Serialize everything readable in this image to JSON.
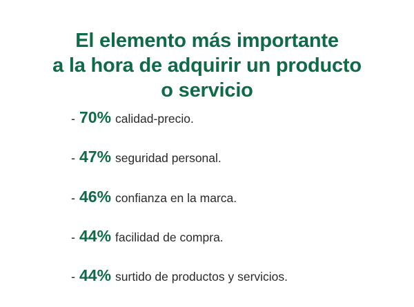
{
  "title": {
    "lines": [
      "El elemento más importante",
      "a la hora de adquirir un producto",
      "o servicio"
    ]
  },
  "items": [
    {
      "bullet": "-",
      "percent": "70%",
      "text": "calidad-precio."
    },
    {
      "bullet": "-",
      "percent": "47%",
      "text": "seguridad personal."
    },
    {
      "bullet": "-",
      "percent": "46%",
      "text": "confianza en la marca."
    },
    {
      "bullet": "-",
      "percent": "44%",
      "text": "facilidad de compra."
    },
    {
      "bullet": "-",
      "percent": "44%",
      "text": "surtido de productos y servicios."
    }
  ],
  "colors": {
    "accent": "#0e6a47",
    "text": "#2a2a2a",
    "background": "#ffffff"
  }
}
